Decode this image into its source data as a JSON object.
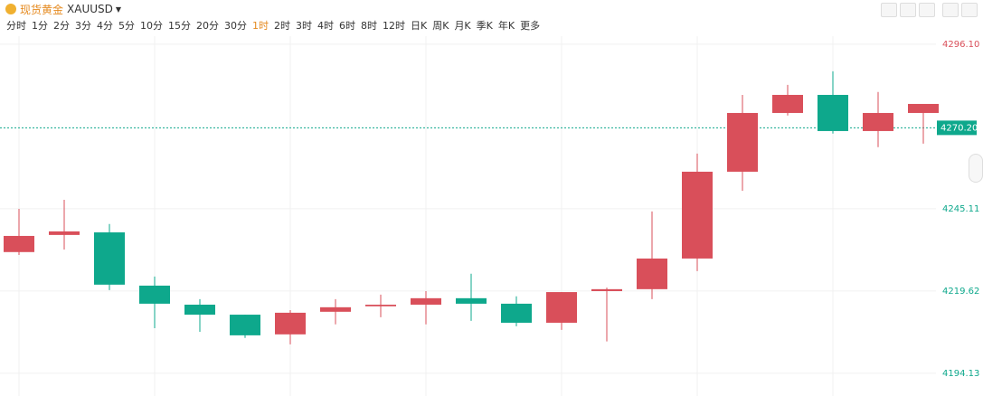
{
  "toolbar": {
    "title": "现货黄金",
    "symbol": "XAUUSD",
    "periods": [
      "分时",
      "1分",
      "2分",
      "3分",
      "4分",
      "5分",
      "10分",
      "15分",
      "20分",
      "30分",
      "1时",
      "2时",
      "3时",
      "4时",
      "6时",
      "8时",
      "12时",
      "日K",
      "周K",
      "月K",
      "季K",
      "年K"
    ],
    "active_period": "1时",
    "more": "更多"
  },
  "chart_data": {
    "type": "candlestick",
    "open": [
      4231.7,
      4237.0,
      4237.8,
      4221.3,
      4215.4,
      4212.3,
      4206.2,
      4213.2,
      4214.9,
      4215.4,
      4217.4,
      4215.7,
      4209.8,
      4219.6,
      4220.2,
      4229.7,
      4256.6,
      4274.8,
      4280.4,
      4269.2,
      4274.8
    ],
    "high": [
      4245.1,
      4247.9,
      4240.4,
      4224.1,
      4217.1,
      4212.3,
      4213.7,
      4217.1,
      4218.5,
      4219.6,
      4225.0,
      4218.0,
      4219.3,
      4220.7,
      4244.3,
      4262.2,
      4280.4,
      4283.5,
      4287.7,
      4281.3,
      4277.6
    ],
    "low": [
      4230.8,
      4232.5,
      4219.9,
      4208.1,
      4207.0,
      4205.1,
      4203.1,
      4209.3,
      4211.5,
      4209.3,
      4210.4,
      4208.7,
      4207.6,
      4204.0,
      4217.1,
      4225.8,
      4250.7,
      4274.0,
      4268.4,
      4264.2,
      4265.3
    ],
    "close": [
      4236.7,
      4238.1,
      4221.6,
      4215.7,
      4212.3,
      4205.9,
      4212.9,
      4214.6,
      4215.4,
      4217.4,
      4215.7,
      4209.8,
      4219.3,
      4220.2,
      4229.7,
      4256.6,
      4274.8,
      4280.4,
      4269.2,
      4274.8,
      4277.6
    ],
    "up_color": "#d94f5a",
    "down_color": "#0ea88c",
    "ylim": [
      4187.1,
      4298.6
    ],
    "yticks": [
      {
        "value": 4296.1,
        "label": "4296.10"
      },
      4245.11,
      4219.62,
      4194.13
    ],
    "ytick_colors": [
      "#d94f5a",
      "#0ea88c",
      "#0ea88c",
      "#0ea88c"
    ],
    "current_price": {
      "value": 4270.2,
      "label": "4270.20"
    },
    "grid": true
  }
}
